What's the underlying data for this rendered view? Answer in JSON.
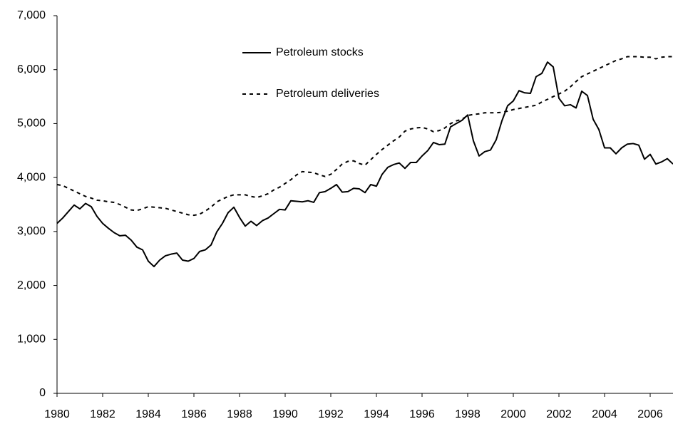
{
  "chart_data": {
    "type": "line",
    "x": [
      1980,
      1980.25,
      1980.5,
      1980.75,
      1981,
      1981.25,
      1981.5,
      1981.75,
      1982,
      1982.25,
      1982.5,
      1982.75,
      1983,
      1983.25,
      1983.5,
      1983.75,
      1984,
      1984.25,
      1984.5,
      1984.75,
      1985,
      1985.25,
      1985.5,
      1985.75,
      1986,
      1986.25,
      1986.5,
      1986.75,
      1987,
      1987.25,
      1987.5,
      1987.75,
      1988,
      1988.25,
      1988.5,
      1988.75,
      1989,
      1989.25,
      1989.5,
      1989.75,
      1990,
      1990.25,
      1990.5,
      1990.75,
      1991,
      1991.25,
      1991.5,
      1991.75,
      1992,
      1992.25,
      1992.5,
      1992.75,
      1993,
      1993.25,
      1993.5,
      1993.75,
      1994,
      1994.25,
      1994.5,
      1994.75,
      1995,
      1995.25,
      1995.5,
      1995.75,
      1996,
      1996.25,
      1996.5,
      1996.75,
      1997,
      1997.25,
      1997.5,
      1997.75,
      1998,
      1998.25,
      1998.5,
      1998.75,
      1999,
      1999.25,
      1999.5,
      1999.75,
      2000,
      2000.25,
      2000.5,
      2000.75,
      2001,
      2001.25,
      2001.5,
      2001.75,
      2002,
      2002.25,
      2002.5,
      2002.75,
      2003,
      2003.25,
      2003.5,
      2003.75,
      2004,
      2004.25,
      2004.5,
      2004.75,
      2005,
      2005.25,
      2005.5,
      2005.75,
      2006,
      2006.25,
      2006.5,
      2006.75,
      2007
    ],
    "series": [
      {
        "name": "Petroleum stocks",
        "color": "#000000",
        "line_style": "solid",
        "values": [
          3150,
          3250,
          3370,
          3490,
          3420,
          3520,
          3460,
          3280,
          3150,
          3060,
          2980,
          2920,
          2930,
          2840,
          2710,
          2660,
          2450,
          2350,
          2470,
          2550,
          2580,
          2600,
          2470,
          2450,
          2500,
          2630,
          2660,
          2750,
          2990,
          3150,
          3350,
          3450,
          3260,
          3100,
          3190,
          3110,
          3200,
          3250,
          3330,
          3410,
          3400,
          3570,
          3560,
          3550,
          3570,
          3540,
          3720,
          3740,
          3800,
          3870,
          3730,
          3740,
          3800,
          3790,
          3720,
          3870,
          3840,
          4060,
          4190,
          4240,
          4270,
          4170,
          4280,
          4280,
          4400,
          4500,
          4650,
          4610,
          4620,
          4940,
          5000,
          5060,
          5160,
          4680,
          4400,
          4480,
          4510,
          4700,
          5050,
          5330,
          5420,
          5610,
          5570,
          5560,
          5870,
          5930,
          6140,
          6050,
          5470,
          5330,
          5350,
          5290,
          5600,
          5520,
          5080,
          4890,
          4550,
          4550,
          4440,
          4550,
          4620,
          4630,
          4600,
          4340,
          4430,
          4250,
          4290,
          4350,
          4250
        ]
      },
      {
        "name": "Petroleum deliveries",
        "color": "#000000",
        "line_style": "dashed",
        "values": [
          3870,
          3850,
          3800,
          3750,
          3700,
          3650,
          3620,
          3580,
          3570,
          3550,
          3540,
          3500,
          3450,
          3400,
          3390,
          3420,
          3460,
          3450,
          3440,
          3430,
          3400,
          3370,
          3340,
          3310,
          3300,
          3320,
          3380,
          3450,
          3550,
          3600,
          3650,
          3680,
          3680,
          3680,
          3650,
          3630,
          3660,
          3700,
          3770,
          3820,
          3890,
          3960,
          4050,
          4110,
          4100,
          4090,
          4050,
          4020,
          4060,
          4150,
          4250,
          4300,
          4310,
          4260,
          4230,
          4330,
          4430,
          4520,
          4600,
          4680,
          4750,
          4860,
          4900,
          4920,
          4930,
          4900,
          4850,
          4870,
          4920,
          5000,
          5050,
          5080,
          5150,
          5170,
          5180,
          5200,
          5200,
          5200,
          5210,
          5230,
          5260,
          5280,
          5300,
          5320,
          5340,
          5400,
          5450,
          5500,
          5550,
          5600,
          5680,
          5780,
          5870,
          5920,
          5970,
          6020,
          6070,
          6120,
          6170,
          6200,
          6240,
          6240,
          6240,
          6230,
          6230,
          6200,
          6230,
          6240,
          6240
        ]
      }
    ],
    "xlim": [
      1980,
      2007
    ],
    "xticks": [
      1980,
      1982,
      1984,
      1986,
      1988,
      1990,
      1992,
      1994,
      1996,
      1998,
      2000,
      2002,
      2004,
      2006
    ],
    "ylim": [
      0,
      7000
    ],
    "yticks": [
      0,
      {
        "value": 1000,
        "label": "1,000"
      },
      {
        "value": 2000,
        "label": "2,000"
      },
      {
        "value": 3000,
        "label": "3,000"
      },
      {
        "value": 4000,
        "label": "4,000"
      },
      {
        "value": 5000,
        "label": "5,000"
      },
      {
        "value": 6000,
        "label": "6,000"
      },
      {
        "value": 7000,
        "label": "7,000"
      }
    ],
    "grid": false,
    "legend": "upper center"
  }
}
